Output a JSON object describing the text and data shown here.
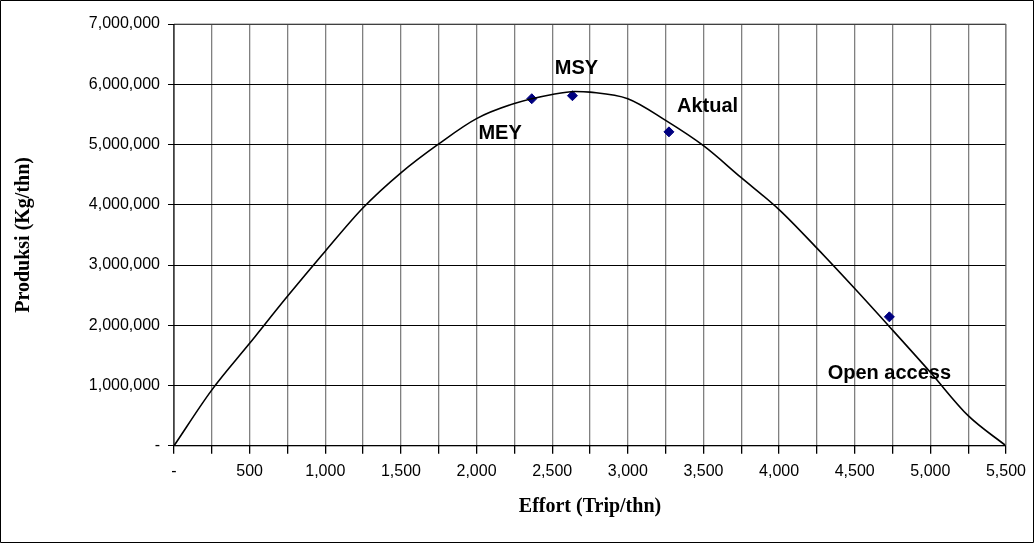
{
  "chart_data": {
    "type": "line",
    "xlabel": "Effort (Trip/thn)",
    "ylabel": "Produksi (Kg/thn)",
    "xlim": [
      0,
      5500
    ],
    "ylim": [
      0,
      7000000
    ],
    "xticks": [
      {
        "value": 0,
        "label": "-"
      },
      {
        "value": 250,
        "label": null
      },
      500,
      {
        "value": 750,
        "label": null
      },
      {
        "value": 1000,
        "label": "1,000"
      },
      {
        "value": 1250,
        "label": null
      },
      {
        "value": 1500,
        "label": "1,500"
      },
      {
        "value": 1750,
        "label": null
      },
      {
        "value": 2000,
        "label": "2,000"
      },
      {
        "value": 2250,
        "label": null
      },
      {
        "value": 2500,
        "label": "2,500"
      },
      {
        "value": 2750,
        "label": null
      },
      {
        "value": 3000,
        "label": "3,000"
      },
      {
        "value": 3250,
        "label": null
      },
      {
        "value": 3500,
        "label": "3,500"
      },
      {
        "value": 3750,
        "label": null
      },
      {
        "value": 4000,
        "label": "4,000"
      },
      {
        "value": 4250,
        "label": null
      },
      {
        "value": 4500,
        "label": "4,500"
      },
      {
        "value": 4750,
        "label": null
      },
      {
        "value": 5000,
        "label": "5,000"
      },
      {
        "value": 5250,
        "label": null
      },
      {
        "value": 5500,
        "label": "5,500"
      }
    ],
    "yticks": [
      {
        "value": 0,
        "label": "-"
      },
      {
        "value": 1000000,
        "label": "1,000,000"
      },
      {
        "value": 2000000,
        "label": "2,000,000"
      },
      {
        "value": 3000000,
        "label": "3,000,000"
      },
      {
        "value": 4000000,
        "label": "4,000,000"
      },
      {
        "value": 5000000,
        "label": "5,000,000"
      },
      {
        "value": 6000000,
        "label": "6,000,000"
      },
      {
        "value": 7000000,
        "label": "7,000,000"
      }
    ],
    "grid": true,
    "legend": false,
    "series": [
      {
        "color": "#000000",
        "marker": "none",
        "line_style": "solid",
        "x": [
          0,
          248,
          500,
          750,
          1000,
          1250,
          1500,
          1750,
          2000,
          2250,
          2500,
          2650,
          2750,
          3000,
          3250,
          3500,
          3750,
          4000,
          4250,
          4500,
          4750,
          5000,
          5250,
          5500
        ],
        "values": [
          0,
          920000,
          1700000,
          2480000,
          3230000,
          3950000,
          4530000,
          5010000,
          5430000,
          5680000,
          5830000,
          5880000,
          5870000,
          5760000,
          5400000,
          4980000,
          4450000,
          3920000,
          3280000,
          2610000,
          1920000,
          1220000,
          500000,
          0
        ]
      },
      {
        "type": "scatter",
        "color": "#000080",
        "marker": "diamond",
        "x": [
          2365,
          2634,
          3272,
          4729
        ],
        "values": [
          5760000,
          5810000,
          5210000,
          2140000
        ]
      }
    ],
    "annotations": [
      {
        "text": "MEY",
        "x": 2365,
        "y": 5760000
      },
      {
        "text": "MSY",
        "x": 2634,
        "y": 5810000
      },
      {
        "text": "Aktual",
        "x": 3272,
        "y": 5210000
      },
      {
        "text": "Open access",
        "x": 4729,
        "y": 2140000
      }
    ]
  }
}
